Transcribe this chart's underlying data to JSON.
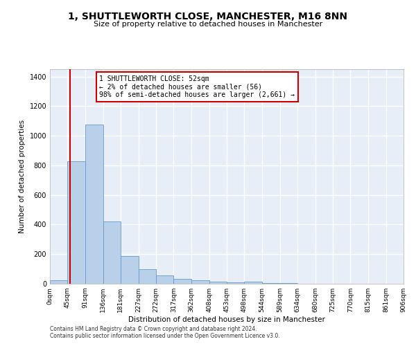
{
  "title": "1, SHUTTLEWORTH CLOSE, MANCHESTER, M16 8NN",
  "subtitle": "Size of property relative to detached houses in Manchester",
  "xlabel": "Distribution of detached houses by size in Manchester",
  "ylabel": "Number of detached properties",
  "bar_color": "#b8d0ea",
  "bar_edgecolor": "#6699cc",
  "background_color": "#e8eef8",
  "grid_color": "#ffffff",
  "fig_background": "#ffffff",
  "bin_edges": [
    0,
    45,
    91,
    136,
    181,
    227,
    272,
    317,
    362,
    408,
    453,
    498,
    544,
    589,
    634,
    680,
    725,
    770,
    815,
    861,
    906
  ],
  "bin_labels": [
    "0sqm",
    "45sqm",
    "91sqm",
    "136sqm",
    "181sqm",
    "227sqm",
    "272sqm",
    "317sqm",
    "362sqm",
    "408sqm",
    "453sqm",
    "498sqm",
    "544sqm",
    "589sqm",
    "634sqm",
    "680sqm",
    "725sqm",
    "770sqm",
    "815sqm",
    "861sqm",
    "906sqm"
  ],
  "bar_heights": [
    25,
    830,
    1075,
    420,
    185,
    100,
    55,
    35,
    25,
    15,
    10,
    15,
    5,
    3,
    2,
    1,
    1,
    1,
    1,
    1
  ],
  "ylim": [
    0,
    1450
  ],
  "yticks": [
    0,
    200,
    400,
    600,
    800,
    1000,
    1200,
    1400
  ],
  "red_line_x": 52,
  "annotation_text": "1 SHUTTLEWORTH CLOSE: 52sqm\n← 2% of detached houses are smaller (56)\n98% of semi-detached houses are larger (2,661) →",
  "annotation_box_color": "#ffffff",
  "annotation_border_color": "#cc0000",
  "footnote1": "Contains HM Land Registry data © Crown copyright and database right 2024.",
  "footnote2": "Contains public sector information licensed under the Open Government Licence v3.0."
}
